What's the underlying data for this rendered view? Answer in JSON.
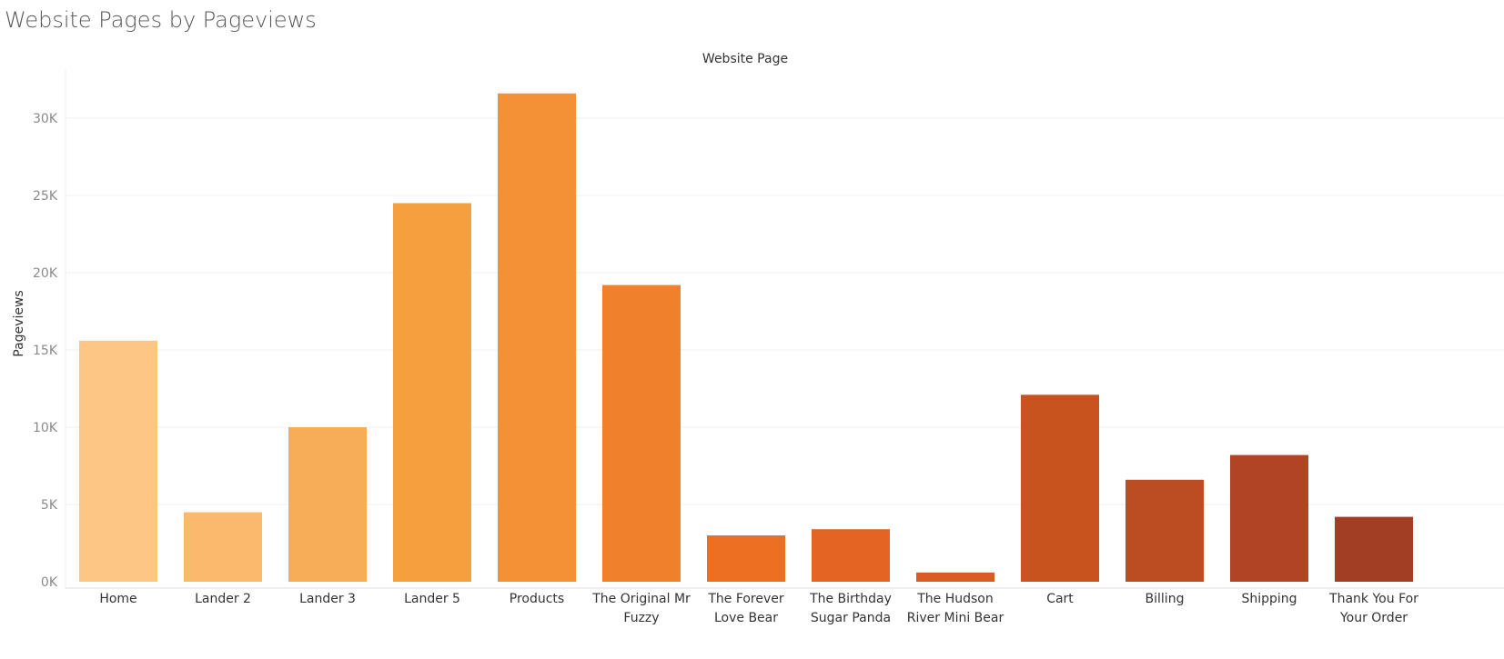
{
  "title": "Website Pages by Pageviews",
  "chart_data": {
    "type": "bar",
    "title": "Website Pages by Pageviews",
    "xlabel": "Website Page",
    "ylabel": "Pageviews",
    "ylim": [
      0,
      32500
    ],
    "yticks": [
      0,
      5000,
      10000,
      15000,
      20000,
      25000,
      30000
    ],
    "ytick_labels": [
      "0K",
      "5K",
      "10K",
      "15K",
      "20K",
      "25K",
      "30K"
    ],
    "grid": true,
    "categories": [
      [
        "Home"
      ],
      [
        "Lander 2"
      ],
      [
        "Lander 3"
      ],
      [
        "Lander 5"
      ],
      [
        "Products"
      ],
      [
        "The Original Mr",
        "Fuzzy"
      ],
      [
        "The Forever",
        "Love Bear"
      ],
      [
        "The Birthday",
        "Sugar Panda"
      ],
      [
        "The Hudson",
        "River Mini Bear"
      ],
      [
        "Cart"
      ],
      [
        "Billing"
      ],
      [
        "Shipping"
      ],
      [
        "Thank You For",
        "Your Order"
      ]
    ],
    "values": [
      15600,
      4500,
      10000,
      24500,
      31600,
      19200,
      3000,
      3400,
      600,
      12100,
      6600,
      8200,
      4200
    ],
    "colors": [
      "#fdc685",
      "#fbb96e",
      "#f7ac57",
      "#f59f3f",
      "#f49035",
      "#f0802b",
      "#ed7022",
      "#e46523",
      "#db5b24",
      "#c9531f",
      "#bc4c22",
      "#b04425",
      "#a13e24"
    ]
  }
}
